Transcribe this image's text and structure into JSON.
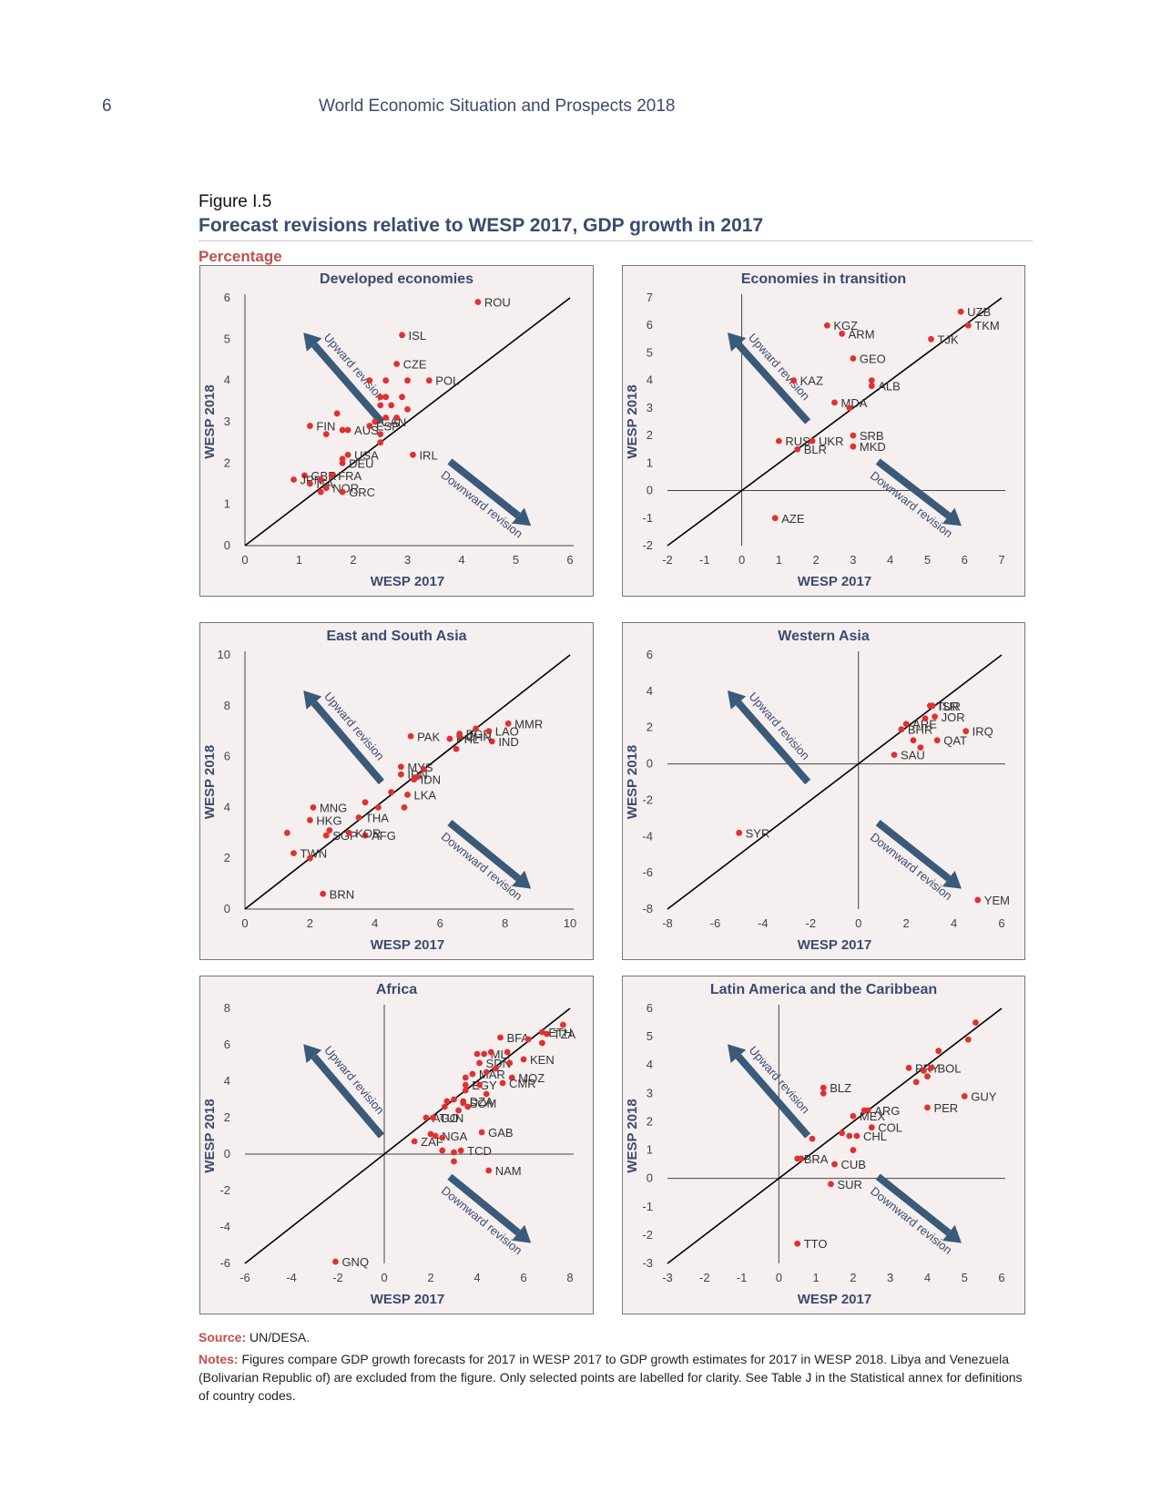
{
  "page": {
    "number": "6",
    "running_head": "World Economic Situation and Prospects 2018"
  },
  "figure": {
    "label": "Figure I.5",
    "title": "Forecast revisions relative to WESP 2017, GDP growth in 2017",
    "unit": "Percentage"
  },
  "source": {
    "label": "Source:",
    "text": "UN/DESA."
  },
  "notes": {
    "label": "Notes:",
    "text": "Figures compare GDP growth forecasts for 2017 in WESP 2017 to GDP growth estimates for 2017 in WESP 2018. Libya and Venezuela (Bolivarian Republic of) are excluded from the figure. Only selected points are labelled for clarity. See Table J in the Statistical annex for definitions of country codes."
  },
  "colors": {
    "panel_bg": "#f5efef",
    "point": "#e03131",
    "arrow": "#3a5a7a",
    "title": "#3b4b6e",
    "source_label": "#c0504d"
  },
  "chart_data": [
    {
      "type": "scatter",
      "title": "Developed economies",
      "xlabel": "WESP 2017",
      "ylabel": "WESP 2018",
      "xlim": [
        0,
        6
      ],
      "ylim": [
        0,
        6
      ],
      "xticks": [
        0,
        1,
        2,
        3,
        4,
        5,
        6
      ],
      "yticks": [
        0,
        1,
        2,
        3,
        4,
        5,
        6
      ],
      "axes_cross": false,
      "upward_label": "Upward revision",
      "downward_label": "Downward revision",
      "points": [
        {
          "label": "ROU",
          "x": 4.3,
          "y": 5.9
        },
        {
          "label": "ISL",
          "x": 2.9,
          "y": 5.1
        },
        {
          "label": "CZE",
          "x": 2.8,
          "y": 4.4
        },
        {
          "label": "POL",
          "x": 3.4,
          "y": 4.0
        },
        {
          "label": "AUS",
          "x": 1.9,
          "y": 2.8
        },
        {
          "label": "CAN",
          "x": 2.4,
          "y": 3.0
        },
        {
          "label": "FIN",
          "x": 1.2,
          "y": 2.9
        },
        {
          "label": "ESP",
          "x": 2.3,
          "y": 2.9
        },
        {
          "label": "USA",
          "x": 1.9,
          "y": 2.2
        },
        {
          "label": "GBR",
          "x": 1.1,
          "y": 1.7
        },
        {
          "label": "DEU",
          "x": 1.8,
          "y": 2.0
        },
        {
          "label": "IRL",
          "x": 3.1,
          "y": 2.2
        },
        {
          "label": "JPN",
          "x": 0.9,
          "y": 1.6
        },
        {
          "label": "FRA",
          "x": 1.6,
          "y": 1.7
        },
        {
          "label": "ITA",
          "x": 1.2,
          "y": 1.5
        },
        {
          "label": "NOR",
          "x": 1.5,
          "y": 1.4
        },
        {
          "label": "GRC",
          "x": 1.8,
          "y": 1.3
        },
        {
          "label": "",
          "x": 2.3,
          "y": 4.0
        },
        {
          "label": "",
          "x": 2.6,
          "y": 4.0
        },
        {
          "label": "",
          "x": 3.0,
          "y": 4.0
        },
        {
          "label": "",
          "x": 2.5,
          "y": 3.6
        },
        {
          "label": "",
          "x": 2.6,
          "y": 3.6
        },
        {
          "label": "",
          "x": 2.9,
          "y": 3.6
        },
        {
          "label": "",
          "x": 2.5,
          "y": 3.4
        },
        {
          "label": "",
          "x": 2.7,
          "y": 3.4
        },
        {
          "label": "",
          "x": 3.0,
          "y": 3.3
        },
        {
          "label": "",
          "x": 2.6,
          "y": 3.1
        },
        {
          "label": "",
          "x": 2.8,
          "y": 3.1
        },
        {
          "label": "",
          "x": 1.7,
          "y": 3.2
        },
        {
          "label": "",
          "x": 1.5,
          "y": 2.7
        },
        {
          "label": "",
          "x": 1.8,
          "y": 2.8
        },
        {
          "label": "",
          "x": 2.5,
          "y": 2.7
        },
        {
          "label": "",
          "x": 2.5,
          "y": 2.5
        },
        {
          "label": "",
          "x": 1.8,
          "y": 2.1
        },
        {
          "label": "",
          "x": 1.4,
          "y": 1.6
        },
        {
          "label": "",
          "x": 1.5,
          "y": 1.4
        },
        {
          "label": "",
          "x": 1.4,
          "y": 1.3
        }
      ]
    },
    {
      "type": "scatter",
      "title": "Economies in transition",
      "xlabel": "WESP 2017",
      "ylabel": "WESP 2018",
      "xlim": [
        -2,
        7
      ],
      "ylim": [
        -2,
        7
      ],
      "xticks": [
        -2,
        -1,
        0,
        1,
        2,
        3,
        4,
        5,
        6,
        7
      ],
      "yticks": [
        -2,
        -1,
        0,
        1,
        2,
        3,
        4,
        5,
        6,
        7
      ],
      "axes_cross": true,
      "upward_label": "Upward revision",
      "downward_label": "Downward revision",
      "points": [
        {
          "label": "KGZ",
          "x": 2.3,
          "y": 6.0
        },
        {
          "label": "ARM",
          "x": 2.7,
          "y": 5.7
        },
        {
          "label": "UZB",
          "x": 5.9,
          "y": 6.5
        },
        {
          "label": "TKM",
          "x": 6.1,
          "y": 6.0
        },
        {
          "label": "TJK",
          "x": 5.1,
          "y": 5.5
        },
        {
          "label": "GEO",
          "x": 3.0,
          "y": 4.8
        },
        {
          "label": "KAZ",
          "x": 1.4,
          "y": 4.0
        },
        {
          "label": "ALB",
          "x": 3.5,
          "y": 3.8
        },
        {
          "label": "MDA",
          "x": 2.5,
          "y": 3.2
        },
        {
          "label": "RUS",
          "x": 1.0,
          "y": 1.8
        },
        {
          "label": "SRB",
          "x": 3.0,
          "y": 2.0
        },
        {
          "label": "UKR",
          "x": 1.9,
          "y": 1.8
        },
        {
          "label": "BLR",
          "x": 1.5,
          "y": 1.5
        },
        {
          "label": "MKD",
          "x": 3.0,
          "y": 1.6
        },
        {
          "label": "AZE",
          "x": 0.9,
          "y": -1.0
        },
        {
          "label": "",
          "x": 3.5,
          "y": 4.0
        },
        {
          "label": "",
          "x": 2.9,
          "y": 3.0
        }
      ]
    },
    {
      "type": "scatter",
      "title": "East and South Asia",
      "xlabel": "WESP 2017",
      "ylabel": "WESP 2018",
      "xlim": [
        0,
        10
      ],
      "ylim": [
        0,
        10
      ],
      "xticks": [
        0,
        2,
        4,
        6,
        8,
        10
      ],
      "yticks": [
        0,
        2,
        4,
        6,
        8,
        10
      ],
      "axes_cross": false,
      "upward_label": "Upward revision",
      "downward_label": "Downward revision",
      "points": [
        {
          "label": "PAK",
          "x": 5.1,
          "y": 6.8
        },
        {
          "label": "BGD",
          "x": 6.6,
          "y": 6.9
        },
        {
          "label": "PHL",
          "x": 6.3,
          "y": 6.7
        },
        {
          "label": "MMR",
          "x": 8.1,
          "y": 7.3
        },
        {
          "label": "LAO",
          "x": 7.5,
          "y": 7.0
        },
        {
          "label": "IND",
          "x": 7.6,
          "y": 6.6
        },
        {
          "label": "CHN",
          "x": 6.6,
          "y": 6.8
        },
        {
          "label": "MYS",
          "x": 4.8,
          "y": 5.6
        },
        {
          "label": "IRN",
          "x": 4.8,
          "y": 5.3
        },
        {
          "label": "IDN",
          "x": 5.2,
          "y": 5.1
        },
        {
          "label": "MNG",
          "x": 2.1,
          "y": 4.0
        },
        {
          "label": "LKA",
          "x": 5.0,
          "y": 4.5
        },
        {
          "label": "HKG",
          "x": 2.0,
          "y": 3.5
        },
        {
          "label": "THA",
          "x": 3.5,
          "y": 3.6
        },
        {
          "label": "SGP",
          "x": 2.5,
          "y": 2.9
        },
        {
          "label": "AFG",
          "x": 3.7,
          "y": 2.9
        },
        {
          "label": "KOR",
          "x": 3.2,
          "y": 3.0
        },
        {
          "label": "TWN",
          "x": 1.5,
          "y": 2.2
        },
        {
          "label": "BRN",
          "x": 2.4,
          "y": 0.6
        },
        {
          "label": "",
          "x": 1.3,
          "y": 3.0
        },
        {
          "label": "",
          "x": 2.0,
          "y": 2.0
        },
        {
          "label": "",
          "x": 2.6,
          "y": 3.1
        },
        {
          "label": "",
          "x": 3.7,
          "y": 4.2
        },
        {
          "label": "",
          "x": 4.1,
          "y": 4.0
        },
        {
          "label": "",
          "x": 4.5,
          "y": 4.6
        },
        {
          "label": "",
          "x": 4.9,
          "y": 4.0
        },
        {
          "label": "",
          "x": 5.3,
          "y": 5.2
        },
        {
          "label": "",
          "x": 5.5,
          "y": 5.5
        },
        {
          "label": "",
          "x": 6.5,
          "y": 6.3
        },
        {
          "label": "",
          "x": 7.1,
          "y": 7.1
        }
      ]
    },
    {
      "type": "scatter",
      "title": "Western Asia",
      "xlabel": "WESP 2017",
      "ylabel": "WESP 2018",
      "xlim": [
        -8,
        6
      ],
      "ylim": [
        -8,
        6
      ],
      "xticks": [
        -8,
        -6,
        -4,
        -2,
        0,
        2,
        4,
        6
      ],
      "yticks": [
        -8,
        -6,
        -4,
        -2,
        0,
        2,
        4,
        6
      ],
      "axes_cross": true,
      "upward_label": "Upward revision",
      "downward_label": "Downward revision",
      "points": [
        {
          "label": "TUR",
          "x": 3.0,
          "y": 3.2
        },
        {
          "label": "ISR",
          "x": 3.1,
          "y": 3.2
        },
        {
          "label": "JOR",
          "x": 3.2,
          "y": 2.6
        },
        {
          "label": "ARE",
          "x": 2.0,
          "y": 2.2
        },
        {
          "label": "BHR",
          "x": 1.8,
          "y": 1.9
        },
        {
          "label": "IRQ",
          "x": 4.5,
          "y": 1.8
        },
        {
          "label": "QAT",
          "x": 3.3,
          "y": 1.3
        },
        {
          "label": "SAU",
          "x": 1.5,
          "y": 0.5
        },
        {
          "label": "SYR",
          "x": -5.0,
          "y": -3.8
        },
        {
          "label": "YEM",
          "x": 5.0,
          "y": -7.5
        },
        {
          "label": "",
          "x": 2.3,
          "y": 1.3
        },
        {
          "label": "",
          "x": 2.6,
          "y": 0.9
        },
        {
          "label": "",
          "x": 2.8,
          "y": 2.5
        }
      ]
    },
    {
      "type": "scatter",
      "title": "Africa",
      "xlabel": "WESP 2017",
      "ylabel": "WESP 2018",
      "xlim": [
        -6,
        8
      ],
      "ylim": [
        -6,
        8
      ],
      "xticks": [
        -6,
        -4,
        -2,
        0,
        2,
        4,
        6,
        8
      ],
      "yticks": [
        -6,
        -4,
        -2,
        0,
        2,
        4,
        6,
        8
      ],
      "axes_cross": true,
      "upward_label": "Upward revision",
      "downward_label": "Downward revision",
      "points": [
        {
          "label": "BFA",
          "x": 5.0,
          "y": 6.4
        },
        {
          "label": "ETH",
          "x": 6.8,
          "y": 6.7
        },
        {
          "label": "MLI",
          "x": 4.3,
          "y": 5.5
        },
        {
          "label": "TZA",
          "x": 7.0,
          "y": 6.6
        },
        {
          "label": "SDN",
          "x": 4.1,
          "y": 5.0
        },
        {
          "label": "KEN",
          "x": 6.0,
          "y": 5.2
        },
        {
          "label": "MAR",
          "x": 3.8,
          "y": 4.4
        },
        {
          "label": "MOZ",
          "x": 5.5,
          "y": 4.2
        },
        {
          "label": "EGY",
          "x": 3.5,
          "y": 3.8
        },
        {
          "label": "CMR",
          "x": 5.1,
          "y": 3.9
        },
        {
          "label": "DZA",
          "x": 3.4,
          "y": 2.9
        },
        {
          "label": "SOM",
          "x": 3.4,
          "y": 2.8
        },
        {
          "label": "AGO",
          "x": 1.8,
          "y": 2.0
        },
        {
          "label": "TUN",
          "x": 2.1,
          "y": 2.0
        },
        {
          "label": "GAB",
          "x": 4.2,
          "y": 1.2
        },
        {
          "label": "NGA",
          "x": 2.2,
          "y": 1.0
        },
        {
          "label": "ZAF",
          "x": 1.3,
          "y": 0.7
        },
        {
          "label": "TCD",
          "x": 3.3,
          "y": 0.2
        },
        {
          "label": "NAM",
          "x": 4.5,
          "y": -0.9
        },
        {
          "label": "GNQ",
          "x": -2.1,
          "y": -5.9
        },
        {
          "label": "",
          "x": 6.2,
          "y": 6.3
        },
        {
          "label": "",
          "x": 7.7,
          "y": 7.1
        },
        {
          "label": "",
          "x": 6.8,
          "y": 6.1
        },
        {
          "label": "",
          "x": 4.0,
          "y": 5.5
        },
        {
          "label": "",
          "x": 4.6,
          "y": 5.6
        },
        {
          "label": "",
          "x": 5.3,
          "y": 5.6
        },
        {
          "label": "",
          "x": 5.4,
          "y": 5.0
        },
        {
          "label": "",
          "x": 4.8,
          "y": 4.7
        },
        {
          "label": "",
          "x": 4.4,
          "y": 4.5
        },
        {
          "label": "",
          "x": 3.5,
          "y": 4.2
        },
        {
          "label": "",
          "x": 3.5,
          "y": 3.5
        },
        {
          "label": "",
          "x": 4.1,
          "y": 3.8
        },
        {
          "label": "",
          "x": 4.4,
          "y": 3.3
        },
        {
          "label": "",
          "x": 3.0,
          "y": 3.0
        },
        {
          "label": "",
          "x": 3.6,
          "y": 2.6
        },
        {
          "label": "",
          "x": 2.7,
          "y": 2.9
        },
        {
          "label": "",
          "x": 2.6,
          "y": 2.6
        },
        {
          "label": "",
          "x": 3.2,
          "y": 2.4
        },
        {
          "label": "",
          "x": 2.0,
          "y": 1.1
        },
        {
          "label": "",
          "x": 2.5,
          "y": 0.9
        },
        {
          "label": "",
          "x": 2.5,
          "y": 0.2
        },
        {
          "label": "",
          "x": 3.0,
          "y": 0.1
        },
        {
          "label": "",
          "x": 3.0,
          "y": -0.4
        }
      ]
    },
    {
      "type": "scatter",
      "title": "Latin America and the Caribbean",
      "xlabel": "WESP 2017",
      "ylabel": "WESP 2018",
      "xlim": [
        -3,
        6
      ],
      "ylim": [
        -3,
        6
      ],
      "xticks": [
        -3,
        -2,
        -1,
        0,
        1,
        2,
        3,
        4,
        5,
        6
      ],
      "yticks": [
        -3,
        -2,
        -1,
        0,
        1,
        2,
        3,
        4,
        5,
        6
      ],
      "axes_cross": true,
      "upward_label": "Upward revision",
      "downward_label": "Downward revision",
      "points": [
        {
          "label": "PRY",
          "x": 3.5,
          "y": 3.9
        },
        {
          "label": "BOL",
          "x": 4.1,
          "y": 3.9
        },
        {
          "label": "BLZ",
          "x": 1.2,
          "y": 3.2
        },
        {
          "label": "ARG",
          "x": 2.4,
          "y": 2.4
        },
        {
          "label": "GUY",
          "x": 5.0,
          "y": 2.9
        },
        {
          "label": "MEX",
          "x": 2.0,
          "y": 2.2
        },
        {
          "label": "PER",
          "x": 4.0,
          "y": 2.5
        },
        {
          "label": "COL",
          "x": 2.5,
          "y": 1.8
        },
        {
          "label": "CHL",
          "x": 2.1,
          "y": 1.5
        },
        {
          "label": "BRA",
          "x": 0.5,
          "y": 0.7
        },
        {
          "label": "CUB",
          "x": 1.5,
          "y": 0.5
        },
        {
          "label": "SUR",
          "x": 1.4,
          "y": -0.2
        },
        {
          "label": "TTO",
          "x": 0.5,
          "y": -2.3
        },
        {
          "label": "",
          "x": 5.3,
          "y": 5.5
        },
        {
          "label": "",
          "x": 5.1,
          "y": 4.9
        },
        {
          "label": "",
          "x": 4.3,
          "y": 4.5
        },
        {
          "label": "",
          "x": 3.9,
          "y": 3.8
        },
        {
          "label": "",
          "x": 4.0,
          "y": 3.6
        },
        {
          "label": "",
          "x": 3.7,
          "y": 3.4
        },
        {
          "label": "",
          "x": 1.2,
          "y": 3.0
        },
        {
          "label": "",
          "x": 2.3,
          "y": 2.4
        },
        {
          "label": "",
          "x": 1.7,
          "y": 1.6
        },
        {
          "label": "",
          "x": 1.9,
          "y": 1.5
        },
        {
          "label": "",
          "x": 0.9,
          "y": 1.4
        },
        {
          "label": "",
          "x": 2.0,
          "y": 1.0
        },
        {
          "label": "",
          "x": 0.6,
          "y": 0.7
        }
      ]
    }
  ]
}
